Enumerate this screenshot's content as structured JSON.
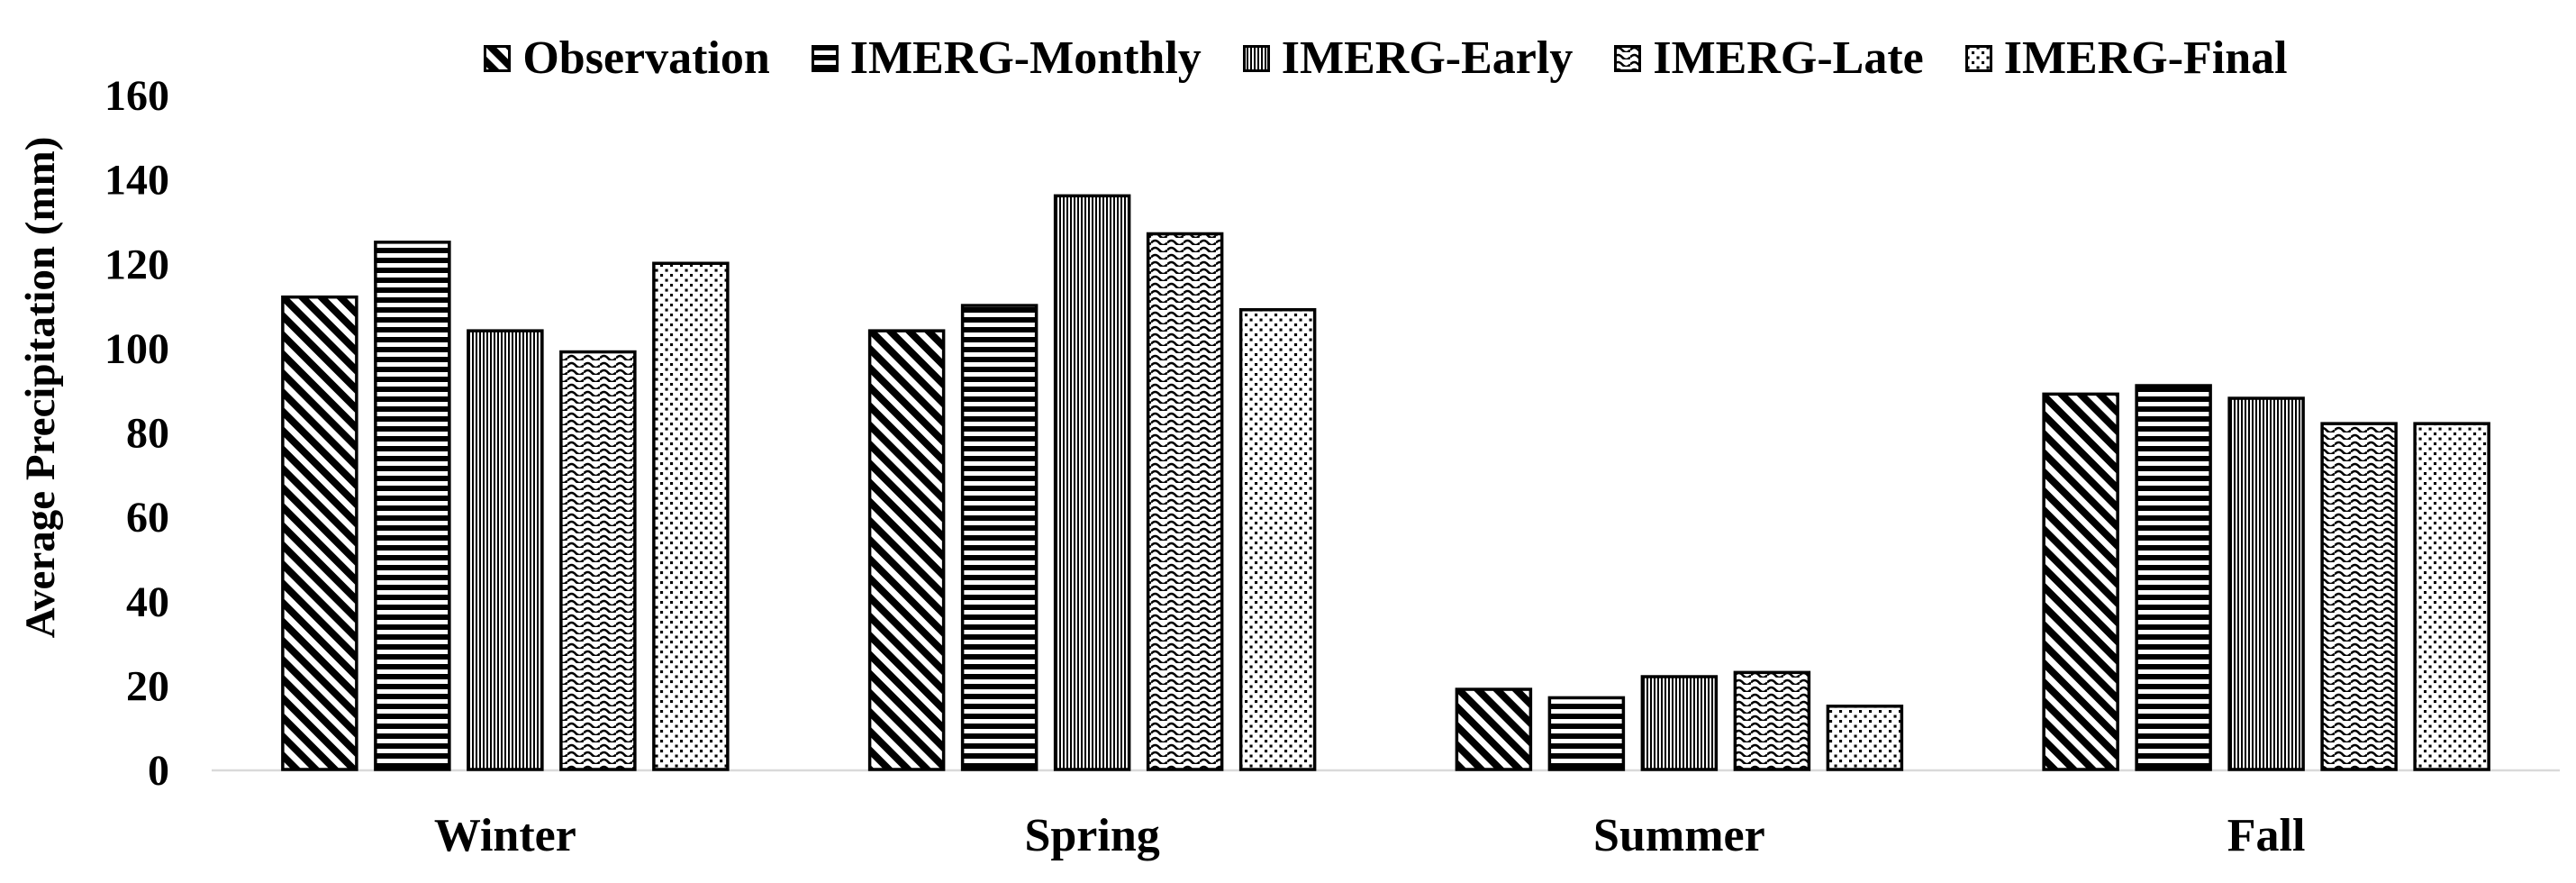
{
  "chart_data": {
    "type": "bar",
    "title": "",
    "xlabel": "",
    "ylabel": "Average Precipitation (mm)",
    "categories": [
      "Winter",
      "Spring",
      "Summer",
      "Fall"
    ],
    "series": [
      {
        "name": "Observation",
        "pattern_icon": "diagonal-stripes",
        "values": [
          112,
          104,
          19,
          89
        ]
      },
      {
        "name": "IMERG-Monthly",
        "pattern_icon": "horizontal-stripes",
        "values": [
          125,
          110,
          17,
          91
        ]
      },
      {
        "name": "IMERG-Early",
        "pattern_icon": "vertical-stripes",
        "values": [
          104,
          136,
          22,
          88
        ]
      },
      {
        "name": "IMERG-Late",
        "pattern_icon": "wavy-lines",
        "values": [
          99,
          127,
          23,
          82
        ]
      },
      {
        "name": "IMERG-Final",
        "pattern_icon": "dots",
        "values": [
          120,
          109,
          15,
          82
        ]
      }
    ],
    "ylim": [
      0,
      160
    ],
    "yticks": [
      0,
      20,
      40,
      60,
      80,
      100,
      120,
      140,
      160
    ],
    "grid": false,
    "legend_position": "top",
    "colors": {
      "bar_outline": "#000000",
      "pattern_fill": "#000000",
      "background": "#ffffff",
      "axis_line": "#d9d9d9",
      "text": "#000000"
    }
  }
}
